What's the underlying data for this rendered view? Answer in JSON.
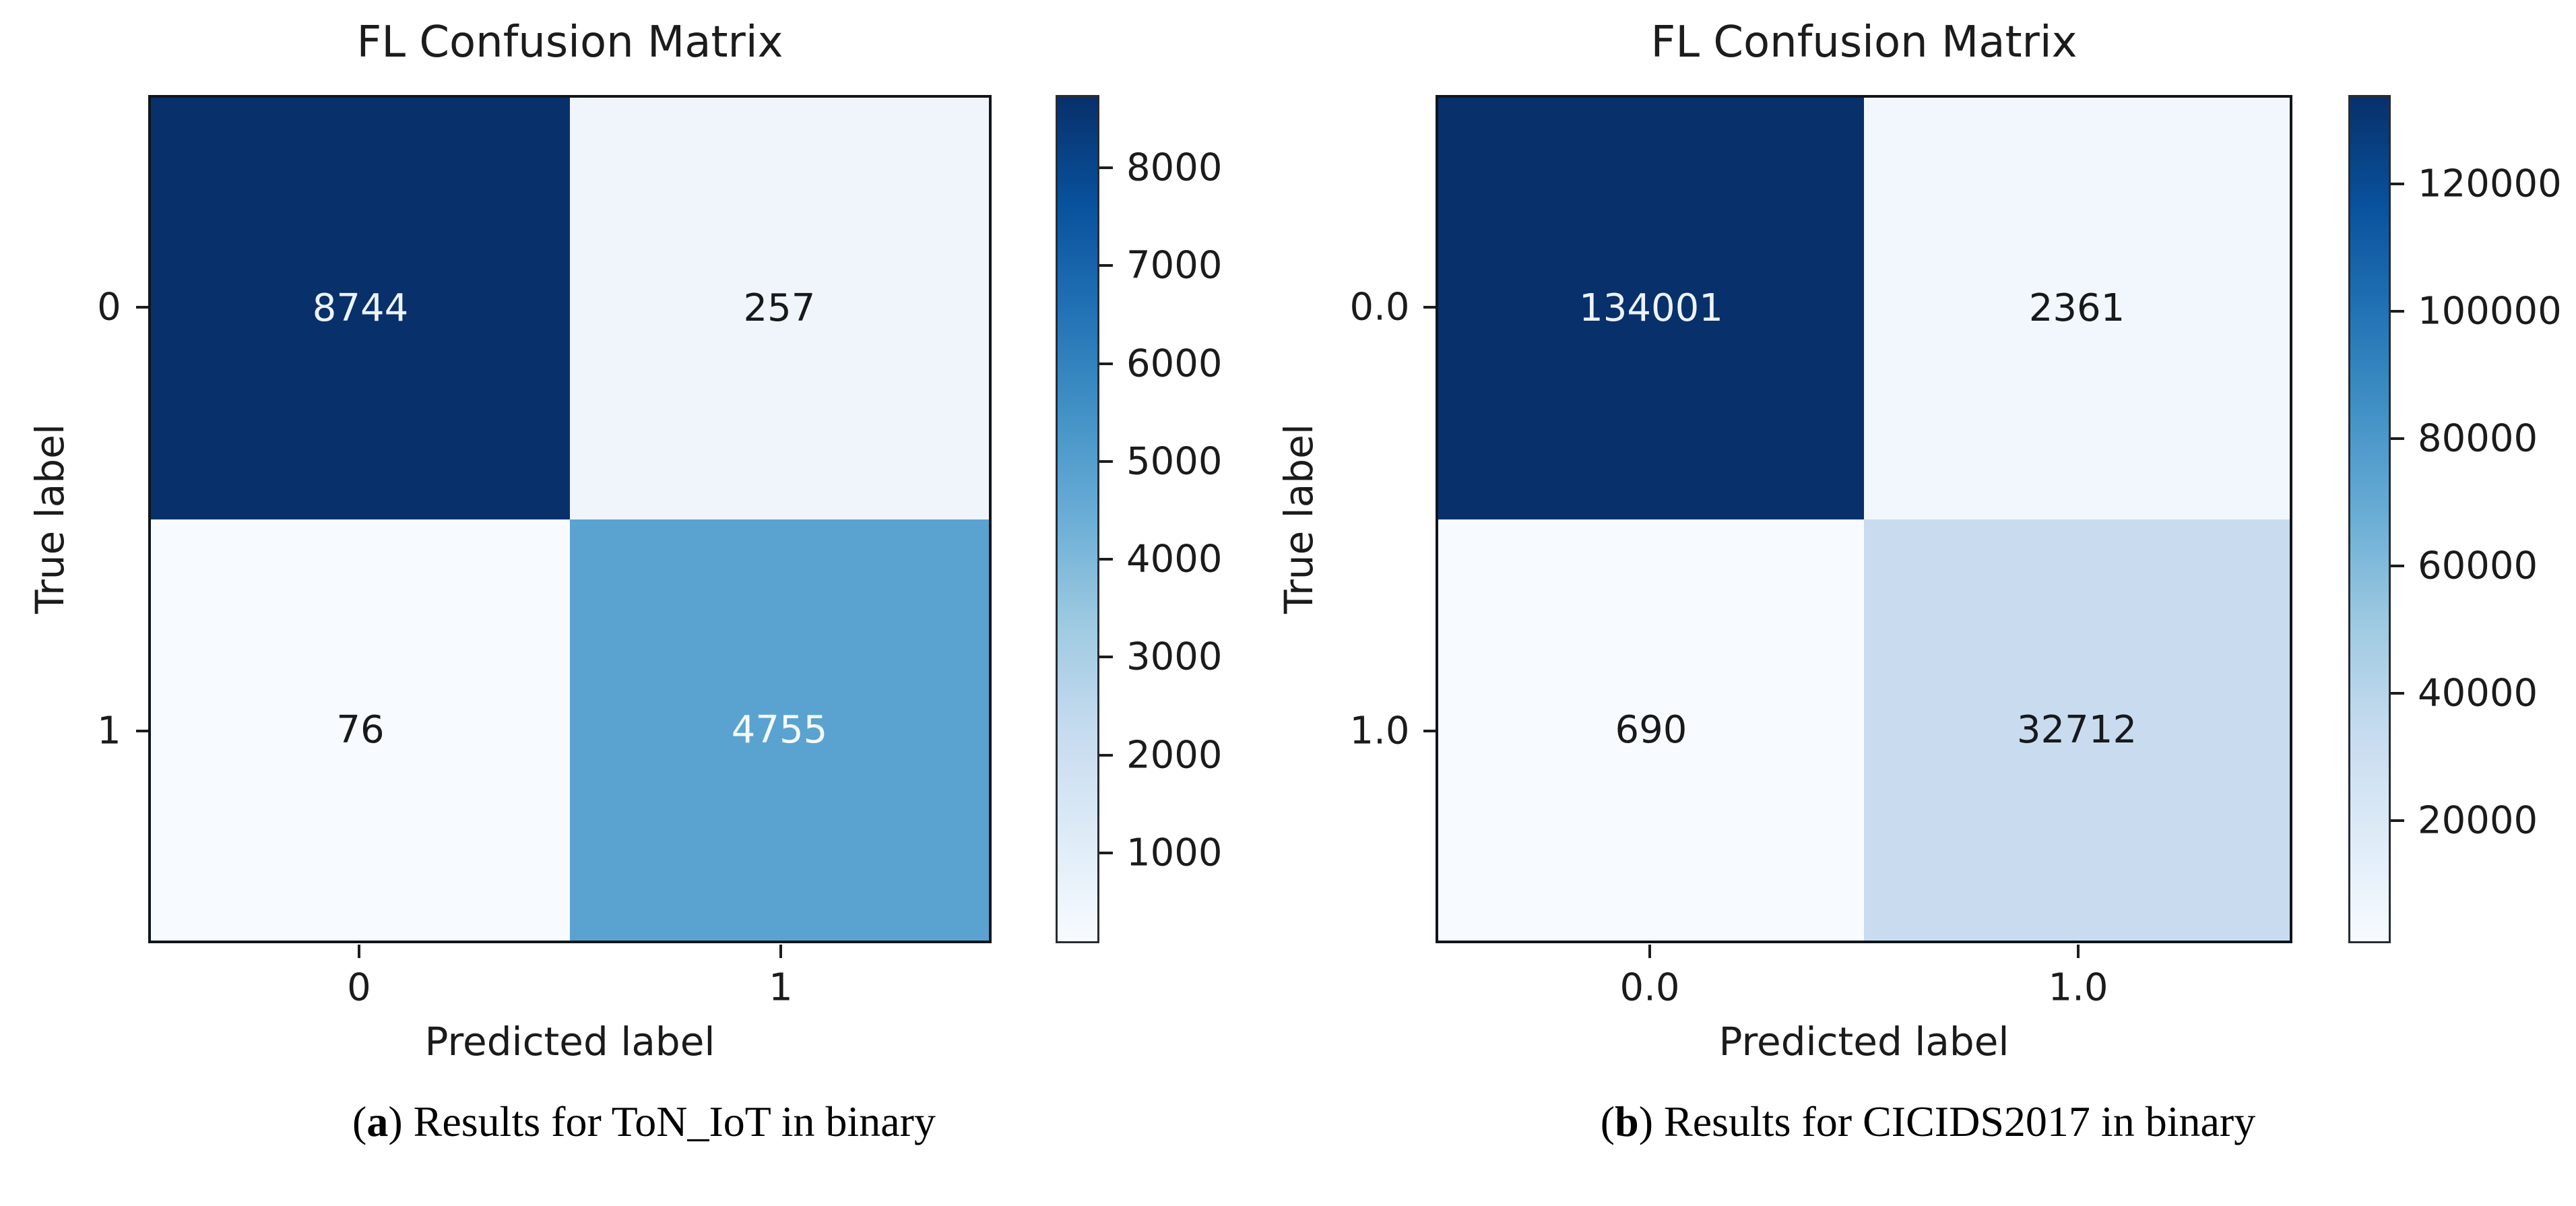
{
  "chart_data": [
    {
      "type": "heatmap",
      "title": "FL Confusion Matrix",
      "xlabel": "Predicted label",
      "ylabel": "True label",
      "x_ticklabels": [
        "0",
        "1"
      ],
      "y_ticklabels": [
        "0",
        "1"
      ],
      "rows": [
        [
          8744,
          257
        ],
        [
          76,
          4755
        ]
      ],
      "vmin": 76,
      "vmax": 8744,
      "colorbar_ticks": [
        1000,
        2000,
        3000,
        4000,
        5000,
        6000,
        7000,
        8000
      ],
      "colormap": "Blues",
      "legend_position": "right-colorbar",
      "grid": false,
      "cell_colors": [
        [
          "#08306b",
          "#f0f5fc"
        ],
        [
          "#f7fbff",
          "#5aa3d1"
        ]
      ],
      "cell_text_colors": [
        [
          "#edf3fb",
          "#17191b"
        ],
        [
          "#17191b",
          "#f5fafe"
        ]
      ],
      "caption_open": "(",
      "caption_index": "a",
      "caption_close": ") ",
      "caption": "Results for ToN_IoT in binary"
    },
    {
      "type": "heatmap",
      "title": "FL Confusion Matrix",
      "xlabel": "Predicted label",
      "ylabel": "True label",
      "x_ticklabels": [
        "0.0",
        "1.0"
      ],
      "y_ticklabels": [
        "0.0",
        "1.0"
      ],
      "rows": [
        [
          134001,
          2361
        ],
        [
          690,
          32712
        ]
      ],
      "vmin": 690,
      "vmax": 134001,
      "colorbar_ticks": [
        20000,
        40000,
        60000,
        80000,
        100000,
        120000
      ],
      "colormap": "Blues",
      "legend_position": "right-colorbar",
      "grid": false,
      "cell_colors": [
        [
          "#08306b",
          "#f1f7fd"
        ],
        [
          "#f7fbff",
          "#c9dcef"
        ]
      ],
      "cell_text_colors": [
        [
          "#edf3fb",
          "#17191b"
        ],
        [
          "#17191b",
          "#17191b"
        ]
      ],
      "caption_open": "(",
      "caption_index": "b",
      "caption_close": ") ",
      "caption": "Results for CICIDS2017 in binary"
    }
  ],
  "colormap_stops_low_to_high": [
    "#f7fbff",
    "#deebf7",
    "#c6dbef",
    "#9ecae1",
    "#6baed6",
    "#4292c6",
    "#2171b5",
    "#08519c",
    "#08306b"
  ]
}
